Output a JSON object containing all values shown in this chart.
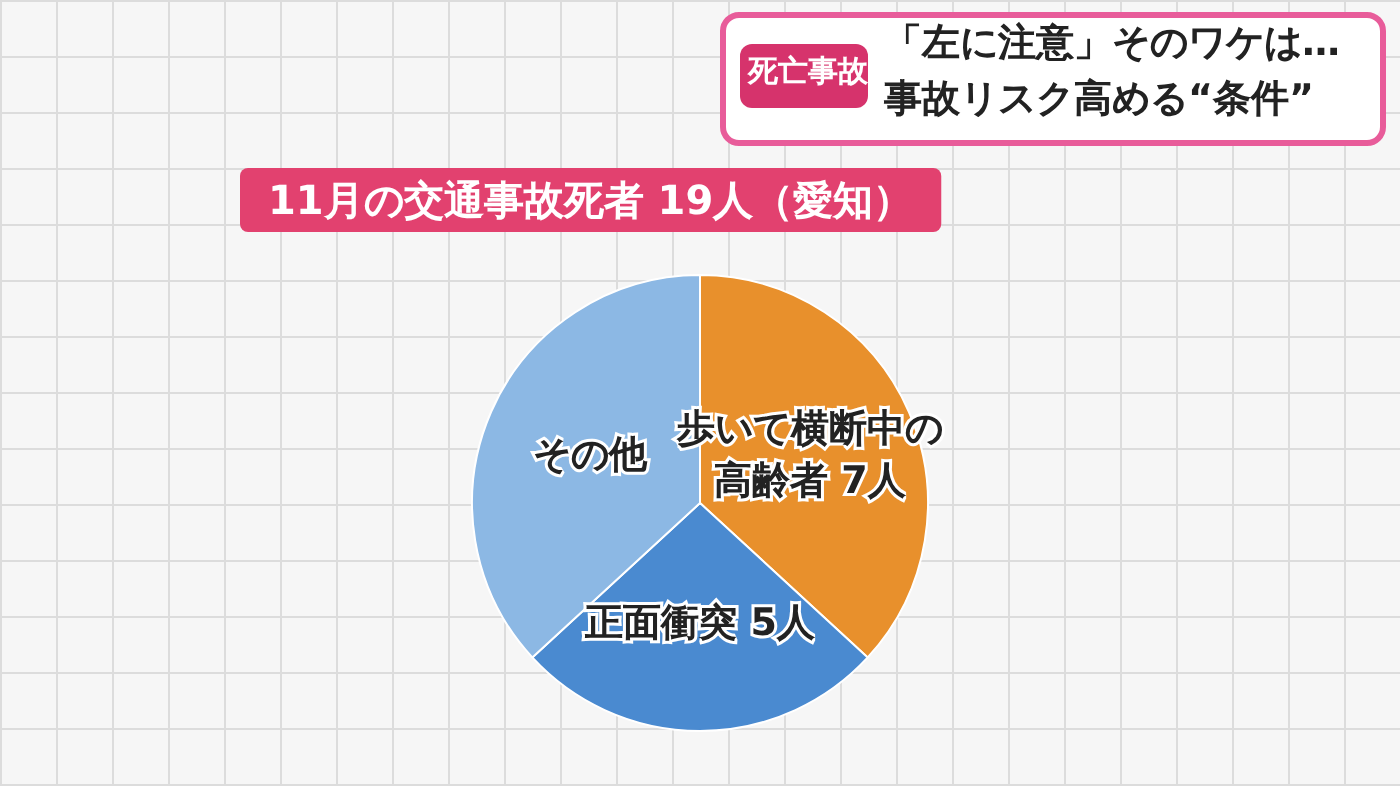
{
  "chart_data": {
    "type": "pie",
    "title": "11月の交通事故死者 19人（愛知）",
    "annotations": [
      "死亡事故",
      "「左に注意」そのワケは…",
      "事故リスク高める“条件”"
    ],
    "categories": [
      "歩いて横断中の高齢者",
      "正面衝突",
      "その他"
    ],
    "values": [
      7,
      5,
      7
    ],
    "colors": [
      "#e8902c",
      "#4a8ad0",
      "#8cb8e4"
    ],
    "value_labels": [
      "7人",
      "5人",
      null
    ],
    "legend": false
  }
}
